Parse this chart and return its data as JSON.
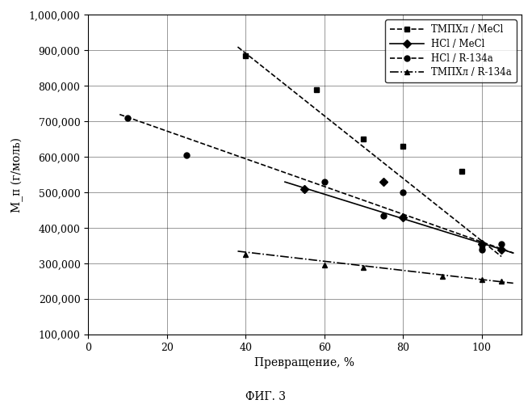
{
  "title": "ФИГ. 3",
  "xlabel": "Превращение, %",
  "ylabel": "М_п (г/моль)",
  "xlim": [
    0,
    110
  ],
  "ylim": [
    100000,
    1000000
  ],
  "yticks": [
    100000,
    200000,
    300000,
    400000,
    500000,
    600000,
    700000,
    800000,
    900000,
    1000000
  ],
  "xticks": [
    0,
    20,
    40,
    60,
    80,
    100
  ],
  "series": [
    {
      "label": "ТМПХл / MeCl",
      "scatter_x": [
        40,
        58,
        70,
        80,
        95,
        100
      ],
      "scatter_y": [
        885000,
        790000,
        650000,
        630000,
        560000,
        345000
      ],
      "trend_x": [
        38,
        105
      ],
      "trend_y": [
        910000,
        320000
      ],
      "linestyle": "--",
      "marker": "s",
      "color": "black",
      "linewidth": 1.2,
      "markersize": 5
    },
    {
      "label": "HCl / MeCl",
      "scatter_x": [
        55,
        75,
        80,
        100,
        105
      ],
      "scatter_y": [
        510000,
        530000,
        430000,
        355000,
        340000
      ],
      "trend_x": [
        50,
        108
      ],
      "trend_y": [
        530000,
        330000
      ],
      "linestyle": "-",
      "marker": "D",
      "color": "black",
      "linewidth": 1.2,
      "markersize": 5
    },
    {
      "label": "HCl / R-134a",
      "scatter_x": [
        10,
        25,
        60,
        75,
        80,
        100,
        105
      ],
      "scatter_y": [
        710000,
        605000,
        530000,
        435000,
        500000,
        340000,
        355000
      ],
      "trend_x": [
        8,
        108
      ],
      "trend_y": [
        720000,
        330000
      ],
      "linestyle": "--",
      "marker": "o",
      "color": "black",
      "linewidth": 1.2,
      "markersize": 5
    },
    {
      "label": "ТМПХл / R-134a",
      "scatter_x": [
        40,
        60,
        70,
        90,
        100,
        105
      ],
      "scatter_y": [
        325000,
        295000,
        290000,
        265000,
        255000,
        250000
      ],
      "trend_x": [
        38,
        108
      ],
      "trend_y": [
        335000,
        245000
      ],
      "linestyle": "-.",
      "marker": "^",
      "color": "black",
      "linewidth": 1.2,
      "markersize": 5
    }
  ],
  "background_color": "#ffffff",
  "grid": true,
  "legend_loc": "upper right",
  "legend_fontsize": 8.5
}
